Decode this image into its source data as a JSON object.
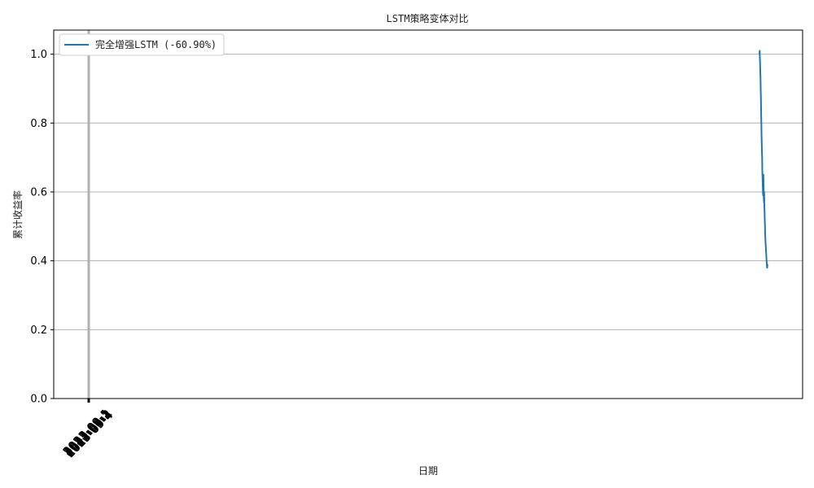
{
  "chart_data": {
    "type": "line",
    "title": "LSTM策略变体对比",
    "xlabel": "日期",
    "ylabel": "累计收益率",
    "ylim": [
      0,
      1.07
    ],
    "yticks": [
      0.0,
      0.2,
      0.4,
      0.6,
      0.8,
      1.0
    ],
    "ytick_labels": [
      "0.0",
      "0.2",
      "0.4",
      "0.6",
      "0.8",
      "1.0"
    ],
    "xtick_labels": [
      "2023-09-1",
      "2023-09-2",
      "2023-09-3",
      "2023-09-4"
    ],
    "grid": "horizontal",
    "legend_placement": "top-left",
    "series_color": "#1f77b4",
    "series": [
      {
        "name": "完全增强LSTM (-60.90%)",
        "x": [
          0,
          1,
          2,
          3,
          4,
          5,
          6,
          7,
          8,
          9,
          10,
          11,
          12,
          13,
          14,
          15,
          16,
          17,
          18,
          19,
          20,
          21,
          22,
          23,
          24,
          25,
          26,
          27,
          28,
          29,
          30,
          31,
          32,
          33,
          34,
          35,
          36,
          37,
          38,
          39,
          40
        ],
        "values": [
          1.0,
          1.01,
          0.99,
          0.97,
          0.95,
          0.93,
          0.9,
          0.87,
          0.84,
          0.8,
          0.77,
          0.74,
          0.72,
          0.7,
          0.66,
          0.64,
          0.62,
          0.6,
          0.59,
          0.65,
          0.63,
          0.58,
          0.57,
          0.6,
          0.56,
          0.54,
          0.52,
          0.5,
          0.48,
          0.46,
          0.45,
          0.44,
          0.43,
          0.42,
          0.41,
          0.4,
          0.39,
          0.38,
          0.38,
          0.39,
          0.391
        ]
      }
    ]
  }
}
